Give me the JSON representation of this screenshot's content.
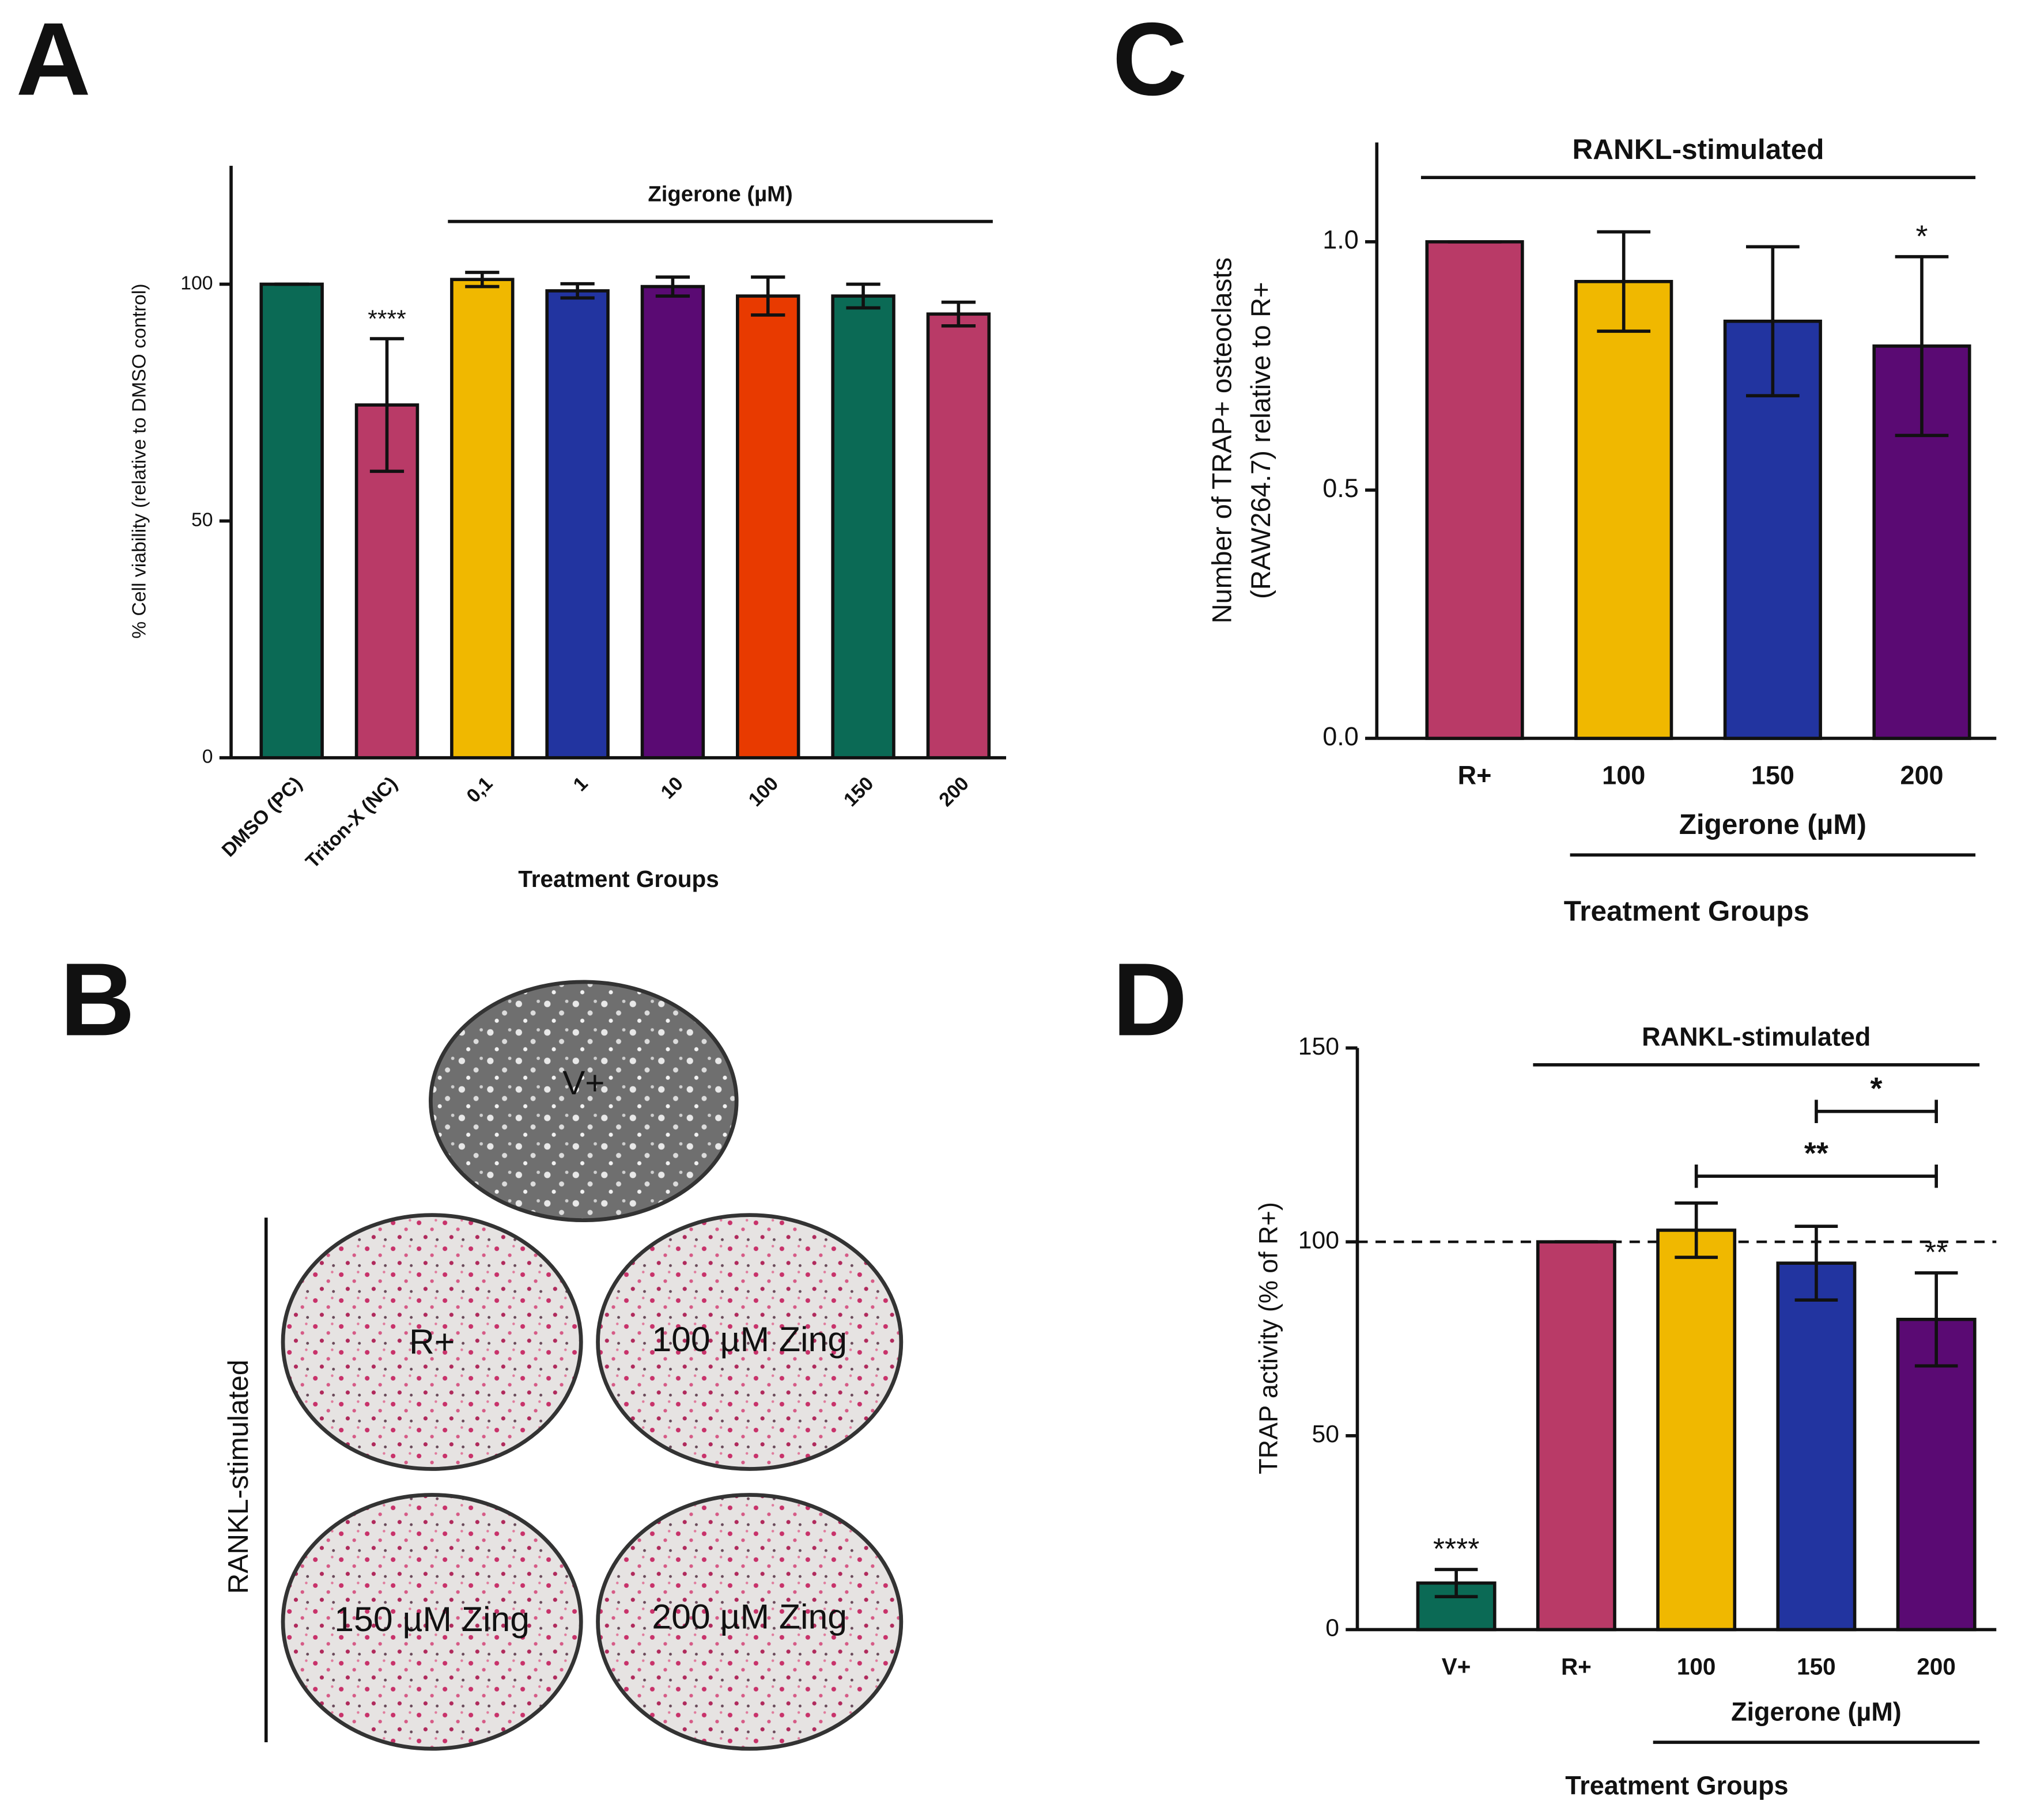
{
  "chart_data": [
    {
      "type": "bar",
      "panel_label": "A",
      "ylabel": [
        "% Cell viability (relative to DMSO control)"
      ],
      "xlabel": "Treatment Groups",
      "categories": [
        "DMSO (PC)",
        "Triton-X (NC)",
        "0,1",
        "1",
        "10",
        "100",
        "150",
        "200"
      ],
      "values": [
        100,
        74.5,
        101,
        98.6,
        99.5,
        97.5,
        97.5,
        93.7
      ],
      "errors": [
        0,
        14,
        1.5,
        1.5,
        2,
        4,
        2.5,
        2.5
      ],
      "colors": [
        "#0b6a55",
        "#b93a67",
        "#f0b800",
        "#2234a0",
        "#5a0a73",
        "#e83a00",
        "#0b6a55",
        "#b93a67"
      ],
      "significance": [
        null,
        "****",
        null,
        null,
        null,
        null,
        null,
        null
      ],
      "top_group": {
        "label": "Zigerone (µM)",
        "from": "0,1",
        "to": "200"
      },
      "ylim": [
        0,
        125
      ],
      "yticks": [
        0,
        50,
        100
      ]
    },
    {
      "type": "bar",
      "panel_label": "C",
      "ylabel": [
        "Number of TRAP+ osteoclasts",
        "(RAW264.7) relative to R+"
      ],
      "xlabel": "Treatment Groups",
      "categories": [
        "R+",
        "100",
        "150",
        "200"
      ],
      "values": [
        1.0,
        0.92,
        0.84,
        0.79
      ],
      "errors": [
        0,
        0.1,
        0.15,
        0.18
      ],
      "colors": [
        "#b93a67",
        "#f0b800",
        "#2234a0",
        "#5a0a73"
      ],
      "significance": [
        null,
        null,
        null,
        "*"
      ],
      "top_group": {
        "label": "RANKL-stimulated",
        "from": "R+",
        "to": "200"
      },
      "bottom_group": {
        "label": "Zigerone (µM)",
        "from": "100",
        "to": "200"
      },
      "ylim": [
        0,
        1.2
      ],
      "yticks": [
        {
          "value": 0,
          "label": "0.0"
        },
        0.5,
        {
          "value": 1,
          "label": "1.0"
        }
      ]
    },
    {
      "type": "bar",
      "panel_label": "D",
      "ylabel": [
        "TRAP activity (% of R+)"
      ],
      "xlabel": "Treatment Groups",
      "categories": [
        "V+",
        "R+",
        "100",
        "150",
        "200"
      ],
      "values": [
        12,
        100,
        103,
        94.5,
        80
      ],
      "errors": [
        3.5,
        0,
        7,
        9.5,
        12
      ],
      "colors": [
        "#0b6a55",
        "#b93a67",
        "#f0b800",
        "#2234a0",
        "#5a0a73"
      ],
      "significance": [
        "****",
        null,
        null,
        null,
        "**"
      ],
      "top_group": {
        "label": "RANKL-stimulated",
        "from": "R+",
        "to": "200"
      },
      "bottom_group": {
        "label": "Zigerone (µM)",
        "from": "100",
        "to": "200"
      },
      "comparisons": [
        {
          "label": "*",
          "between": [
            "150",
            "200"
          ]
        },
        {
          "label": "**",
          "between": [
            "100",
            "200"
          ]
        }
      ],
      "reference_line": 100,
      "ylim": [
        0,
        150
      ],
      "yticks": [
        0,
        50,
        100,
        150
      ]
    }
  ],
  "micrographs": {
    "panel_label": "B",
    "side_label": "RANKL-stimulated",
    "wells": [
      "V+",
      "R+",
      "100 µM Zing",
      "150 µM Zing",
      "200 µM Zing"
    ]
  }
}
